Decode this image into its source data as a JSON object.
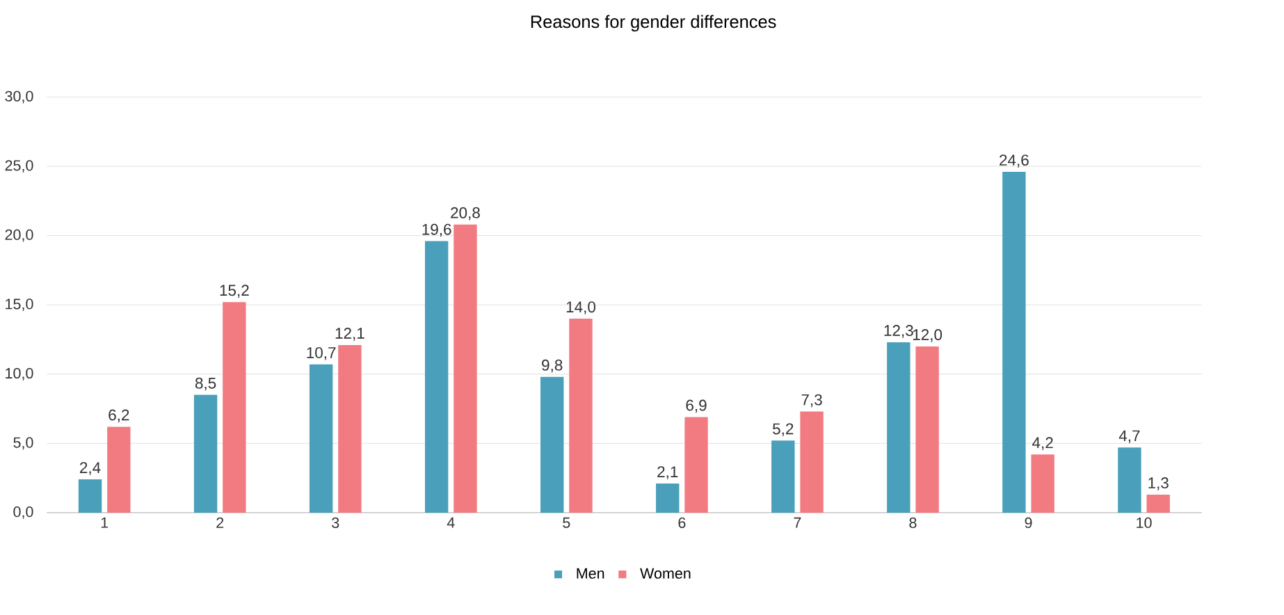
{
  "chart_data": {
    "type": "bar",
    "title": "Reasons for gender differences",
    "categories": [
      "1",
      "2",
      "3",
      "4",
      "5",
      "6",
      "7",
      "8",
      "9",
      "10"
    ],
    "series": [
      {
        "name": "Men",
        "color": "#4a9fba",
        "values": [
          2.4,
          8.5,
          10.7,
          19.6,
          9.8,
          2.1,
          5.2,
          12.3,
          24.6,
          4.7
        ],
        "value_labels": [
          "2,4",
          "8,5",
          "10,7",
          "19,6",
          "9,8",
          "2,1",
          "5,2",
          "12,3",
          "24,6",
          "4,7"
        ]
      },
      {
        "name": "Women",
        "color": "#f27b82",
        "values": [
          6.2,
          15.2,
          12.1,
          20.8,
          14.0,
          6.9,
          7.3,
          12.0,
          4.2,
          1.3
        ],
        "value_labels": [
          "6,2",
          "15,2",
          "12,1",
          "20,8",
          "14,0",
          "6,9",
          "7,3",
          "12,0",
          "4,2",
          "1,3"
        ]
      }
    ],
    "ylim": [
      0,
      30
    ],
    "yticks": [
      {
        "value": 0,
        "label": "0,0"
      },
      {
        "value": 5,
        "label": "5,0"
      },
      {
        "value": 10,
        "label": "10,0"
      },
      {
        "value": 15,
        "label": "15,0"
      },
      {
        "value": 20,
        "label": "20,0"
      },
      {
        "value": 25,
        "label": "25,0"
      },
      {
        "value": 30,
        "label": "30,0"
      }
    ],
    "grid": "y",
    "legend": "bottom"
  }
}
